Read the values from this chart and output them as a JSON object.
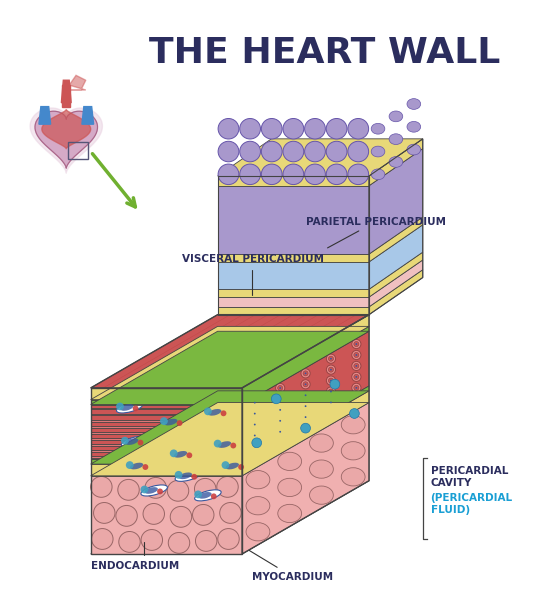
{
  "title": "THE HEART WALL",
  "title_color": "#2b2d5e",
  "title_fontsize": 26,
  "background_color": "#ffffff",
  "labels": {
    "visceral_pericardium": "VISCERAL PERICARDIUM",
    "parietal_pericardium": "PARIETAL PERICARDIUM",
    "endocardium": "ENDOCARDIUM",
    "myocardium": "MYOCARDIUM",
    "pericardial_cavity": "PERICARDIAL\nCAVITY",
    "pericardial_fluid": "(PERICARDIAL\nFLUID)"
  },
  "label_color": "#2b2d5e",
  "label_fluid_color": "#1a9fd4",
  "label_fontsize": 7.5,
  "colors": {
    "endocardium_pink": "#f0b0b0",
    "endocardium_cell": "#eaa8a8",
    "myocardium_red": "#cc5555",
    "myocardium_light": "#dd7777",
    "pericardium_yellow": "#e8d060",
    "pericardium_green": "#7ab840",
    "visceral_yellow": "#e8d870",
    "cavity_blue": "#a8c8e8",
    "parietal_purple": "#a898cc",
    "parietal_blue_cells": "#7898c8",
    "nucleus_blue": "#3858a0",
    "nucleus_cyan": "#40a0c0",
    "nucleus_red": "#cc4040",
    "cell_outline": "#996666",
    "arrow_green": "#70b030",
    "outline": "#444444",
    "stripe_dark": "#aa3333",
    "connective_yellow": "#e8d878"
  }
}
